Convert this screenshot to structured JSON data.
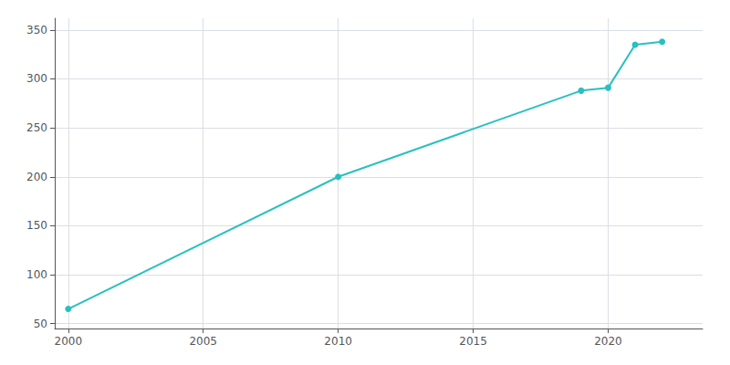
{
  "chart_data": {
    "type": "line",
    "x": [
      2000,
      2010,
      2019,
      2020,
      2021,
      2022
    ],
    "values": [
      65,
      200,
      288,
      291,
      335,
      338
    ],
    "color": "#29c0c0",
    "marker": "circle",
    "xlim": [
      1999.5,
      2023.5
    ],
    "ylim": [
      45,
      362
    ],
    "xticks": [
      2000,
      2005,
      2010,
      2015,
      2020
    ],
    "yticks": [
      50,
      100,
      150,
      200,
      250,
      300,
      350
    ],
    "grid": true
  }
}
